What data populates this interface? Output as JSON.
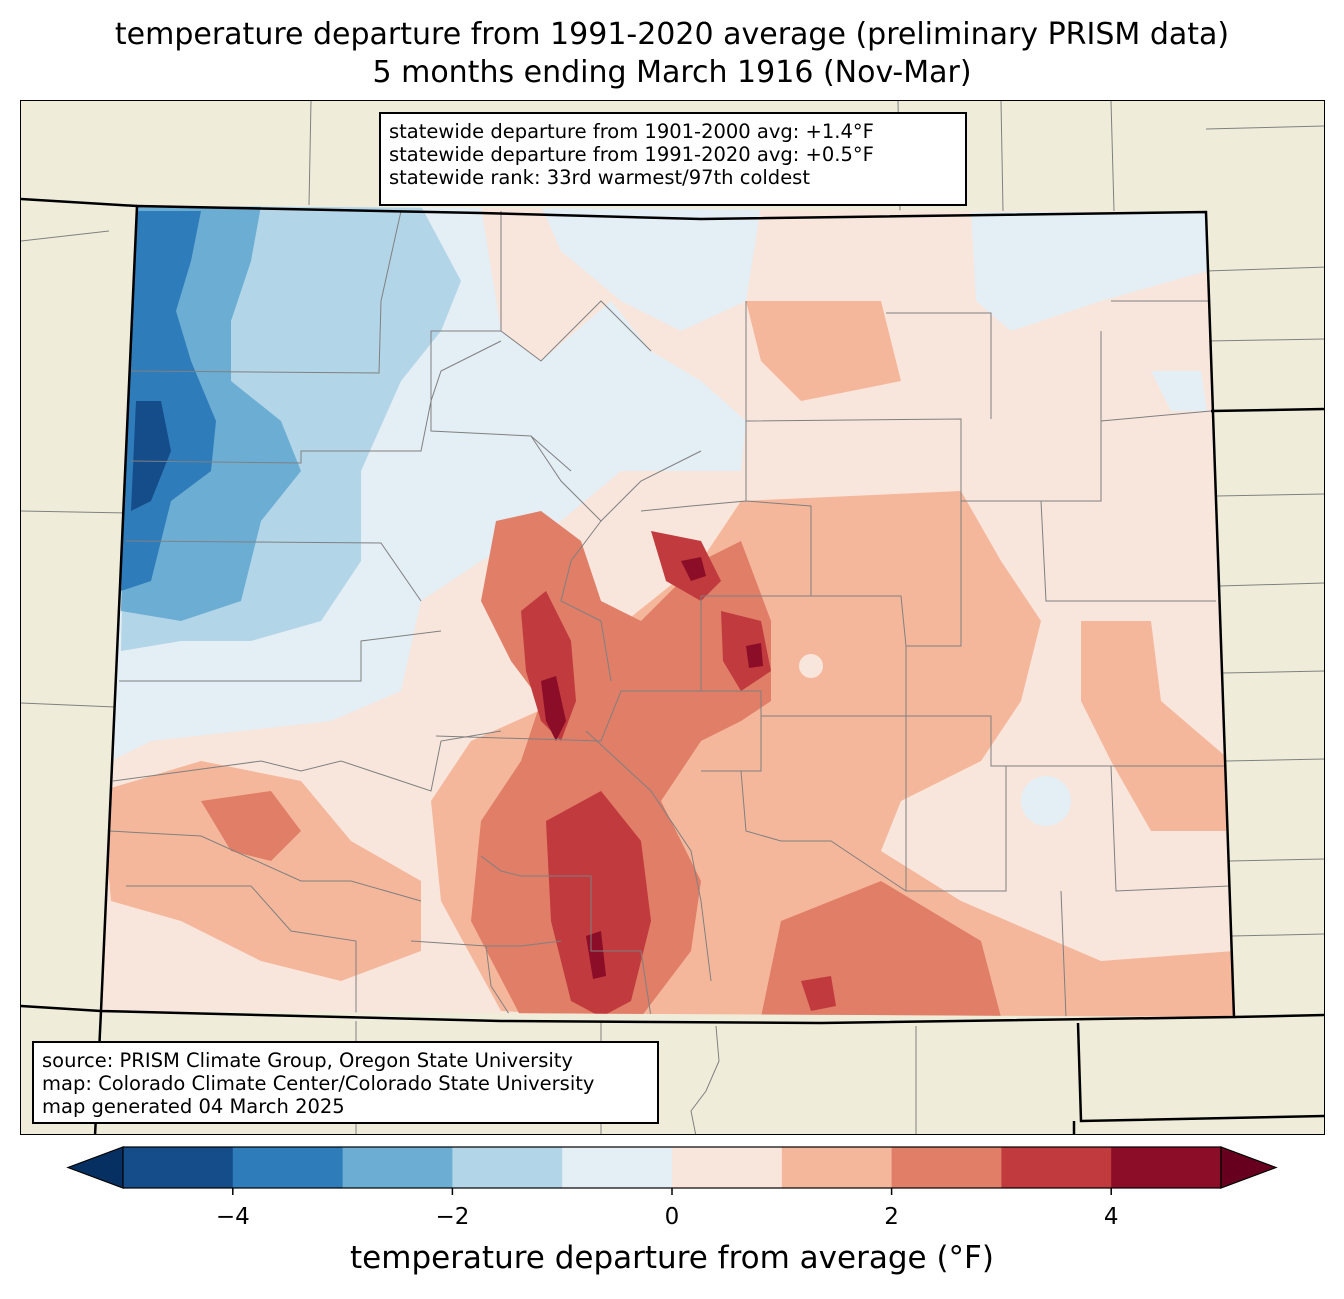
{
  "title": {
    "line1": "temperature departure from 1991-2020 average (preliminary PRISM data)",
    "line2": "5 months ending March 1916 (Nov-Mar)"
  },
  "stats": {
    "line1": "statewide departure from 1901-2000 avg: +1.4°F",
    "line2": "statewide departure from 1991-2020 avg: +0.5°F",
    "line3": "statewide rank: 33rd warmest/97th coldest"
  },
  "source": {
    "line1": "source: PRISM Climate Group, Oregon State University",
    "line2": "map: Colorado Climate Center/Colorado State University",
    "line3": "map generated 04 March 2025"
  },
  "colorbar": {
    "label": "temperature departure from average (°F)",
    "min": -5,
    "max": 5,
    "ticks": [
      "−4",
      "−2",
      "0",
      "2",
      "4"
    ],
    "tick_values": [
      -4,
      -2,
      0,
      2,
      4
    ],
    "colors": [
      "#053061",
      "#154d8a",
      "#2f7cba",
      "#6caed3",
      "#b3d5e8",
      "#e4eef5",
      "#f8e6dc",
      "#f5b79b",
      "#e07e67",
      "#c13a3e",
      "#8b0d27",
      "#67001f"
    ]
  },
  "colors": {
    "land_outside": "#efedda",
    "county_lines": "#808080",
    "state_border": "#000000"
  }
}
